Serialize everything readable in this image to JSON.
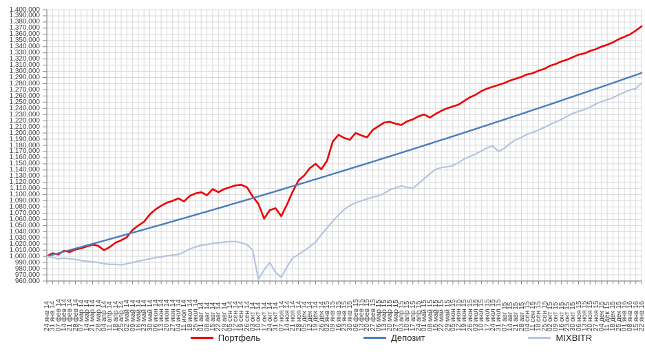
{
  "chart_data": {
    "type": "line",
    "title": "",
    "xlabel": "",
    "ylabel": "",
    "grid": {
      "horizontal": true,
      "vertical": true
    },
    "legend_position": "bottom",
    "y_axis": {
      "min": 960000,
      "max": 1400000,
      "step": 10000,
      "tick_labels": [
        "1,400,000",
        "1,390,000",
        "1,380,000",
        "1,370,000",
        "1,360,000",
        "1,350,000",
        "1,340,000",
        "1,330,000",
        "1,320,000",
        "1,310,000",
        "1,300,000",
        "1,290,000",
        "1,280,000",
        "1,270,000",
        "1,260,000",
        "1,250,000",
        "1,240,000",
        "1,230,000",
        "1,220,000",
        "1,210,000",
        "1,200,000",
        "1,190,000",
        "1,180,000",
        "1,170,000",
        "1,160,000",
        "1,150,000",
        "1,140,000",
        "1,130,000",
        "1,120,000",
        "1,110,000",
        "1,100,000",
        "1,090,000",
        "1,080,000",
        "1,070,000",
        "1,060,000",
        "1,050,000",
        "1,040,000",
        "1,030,000",
        "1,020,000",
        "1,010,000",
        "1,000,000",
        "990,000",
        "980,000",
        "970,000",
        "960,000"
      ]
    },
    "x_tick_labels": [
      "24 янв 14",
      "31 янв 14",
      "07 фев 14",
      "14 фев 14",
      "21 фев 14",
      "28 фев 14",
      "07 мар 14",
      "14 мар 14",
      "21 мар 14",
      "28 мар 14",
      "04 апр 14",
      "11 апр 14",
      "18 апр 14",
      "25 апр 14",
      "02 май 14",
      "09 май 14",
      "16 май 14",
      "23 май 14",
      "30 май 14",
      "06 июн 14",
      "13 июн 14",
      "20 июн 14",
      "27 июн 14",
      "04 июл 14",
      "11 июл 14",
      "18 июл 14",
      "25 июл 14",
      "01 авг 14",
      "08 авг 14",
      "15 авг 14",
      "22 авг 14",
      "29 авг 14",
      "05 сен 14",
      "12 сен 14",
      "19 сен 14",
      "26 сен 14",
      "03 окт 14",
      "10 окт 14",
      "17 окт 14",
      "24 окт 14",
      "31 окт 14",
      "07 ноя 14",
      "14 ноя 14",
      "21 ноя 14",
      "28 ноя 14",
      "05 дек 14",
      "12 дек 14",
      "19 дек 14",
      "26 дек 14",
      "02 янв 15",
      "09 янв 15",
      "16 янв 15",
      "23 янв 15",
      "30 янв 15",
      "06 фев 15",
      "13 фев 15",
      "20 фев 15",
      "27 фев 15",
      "06 мар 15",
      "13 мар 15",
      "20 мар 15",
      "27 мар 15",
      "03 апр 15",
      "10 апр 15",
      "17 апр 15",
      "24 апр 15",
      "01 май 15",
      "08 май 15",
      "15 май 15",
      "22 май 15",
      "29 май 15",
      "05 июн 15",
      "12 июн 15",
      "19 июн 15",
      "26 июн 15",
      "03 июл 15",
      "10 июл 15",
      "17 июл 15",
      "24 июл 15",
      "31 июл 15",
      "07 авг 15",
      "14 авг 15",
      "21 авг 15",
      "28 авг 15",
      "04 сен 15",
      "11 сен 15",
      "18 сен 15",
      "25 сен 15",
      "02 окт 15",
      "09 окт 15",
      "16 окт 15",
      "23 окт 15",
      "30 окт 15",
      "06 ноя 15",
      "13 ноя 15",
      "20 ноя 15",
      "27 ноя 15",
      "04 дек 15",
      "11 дек 15",
      "18 дек 15",
      "25 дек 15",
      "01 янв 16",
      "08 янв 16",
      "15 янв 16",
      "22 янв 16"
    ],
    "series": [
      {
        "name": "Портфель",
        "key": "portfolio",
        "color": "#ee0000",
        "width": 2.6,
        "values": [
          1000000,
          1005000,
          1003000,
          1009000,
          1007000,
          1011000,
          1013000,
          1016000,
          1019000,
          1017000,
          1010000,
          1015000,
          1022000,
          1026000,
          1031000,
          1043000,
          1050000,
          1056000,
          1068000,
          1076000,
          1082000,
          1087000,
          1090000,
          1094000,
          1089000,
          1098000,
          1102000,
          1104000,
          1099000,
          1109000,
          1104000,
          1109000,
          1112000,
          1115000,
          1116000,
          1112000,
          1097000,
          1085000,
          1061000,
          1075000,
          1078000,
          1065000,
          1084000,
          1105000,
          1123000,
          1131000,
          1143000,
          1150000,
          1141000,
          1155000,
          1186000,
          1197000,
          1192000,
          1189000,
          1200000,
          1196000,
          1193000,
          1205000,
          1211000,
          1217000,
          1218000,
          1215000,
          1213000,
          1219000,
          1222000,
          1227000,
          1230000,
          1225000,
          1231000,
          1236000,
          1240000,
          1243000,
          1246000,
          1252000,
          1258000,
          1262000,
          1268000,
          1272000,
          1275000,
          1278000,
          1281000,
          1285000,
          1288000,
          1291000,
          1295000,
          1297000,
          1301000,
          1304000,
          1309000,
          1312000,
          1316000,
          1319000,
          1323000,
          1327000,
          1329000,
          1333000,
          1336000,
          1340000,
          1343000,
          1347000,
          1352000,
          1356000,
          1360000,
          1366000,
          1373000
        ]
      },
      {
        "name": "Депозит",
        "key": "deposit",
        "color": "#4a7ebb",
        "width": 2.4,
        "values": [
          1000000,
          1002500,
          1005000,
          1007500,
          1010100,
          1012600,
          1015100,
          1017700,
          1020200,
          1022800,
          1025300,
          1027900,
          1030500,
          1033100,
          1035700,
          1038300,
          1040900,
          1043500,
          1046100,
          1048700,
          1051300,
          1054000,
          1056600,
          1059300,
          1061900,
          1064600,
          1067300,
          1070000,
          1072600,
          1075300,
          1078000,
          1080700,
          1083500,
          1086200,
          1088900,
          1091600,
          1094400,
          1097100,
          1099900,
          1102600,
          1105400,
          1108200,
          1111000,
          1113800,
          1116500,
          1119300,
          1122200,
          1125000,
          1127800,
          1130600,
          1133500,
          1136300,
          1139100,
          1142000,
          1144900,
          1147700,
          1150600,
          1153500,
          1156400,
          1159300,
          1162200,
          1165100,
          1168000,
          1171000,
          1173900,
          1176800,
          1179800,
          1182700,
          1185700,
          1188700,
          1191600,
          1194600,
          1197600,
          1200600,
          1203600,
          1206600,
          1209700,
          1212700,
          1215700,
          1218800,
          1221800,
          1224900,
          1227900,
          1231000,
          1234100,
          1237200,
          1240300,
          1243400,
          1246500,
          1249600,
          1252700,
          1255900,
          1259000,
          1262200,
          1265300,
          1268500,
          1271700,
          1274800,
          1278000,
          1281200,
          1284400,
          1287700,
          1290900,
          1294100,
          1297400
        ]
      },
      {
        "name": "MIXBITR",
        "key": "mixbitr",
        "color": "#b5c4de",
        "width": 2.2,
        "values": [
          1000000,
          998000,
          996000,
          997000,
          996000,
          995000,
          993000,
          992000,
          991000,
          990000,
          988000,
          987000,
          987000,
          986000,
          988000,
          990000,
          992000,
          994000,
          996000,
          998000,
          999000,
          1001000,
          1002000,
          1003000,
          1007000,
          1012000,
          1015000,
          1018000,
          1019000,
          1021000,
          1022000,
          1023000,
          1024000,
          1024000,
          1022000,
          1019000,
          1010000,
          963000,
          978000,
          990000,
          974000,
          966000,
          983000,
          997000,
          1003000,
          1009000,
          1016000,
          1023000,
          1035000,
          1046000,
          1057000,
          1067000,
          1076000,
          1082000,
          1087000,
          1090000,
          1093000,
          1096000,
          1098000,
          1102000,
          1108000,
          1111000,
          1114000,
          1112000,
          1110000,
          1118000,
          1126000,
          1134000,
          1141000,
          1144000,
          1145000,
          1147000,
          1152000,
          1158000,
          1162000,
          1166000,
          1171000,
          1176000,
          1179000,
          1170000,
          1175000,
          1183000,
          1189000,
          1193000,
          1198000,
          1201000,
          1205000,
          1209000,
          1214000,
          1218000,
          1222000,
          1227000,
          1232000,
          1235000,
          1238000,
          1242000,
          1247000,
          1251000,
          1254000,
          1257000,
          1262000,
          1266000,
          1270000,
          1272000,
          1281000
        ]
      }
    ]
  },
  "colors": {
    "background": "#ffffff",
    "gridline": "#d9d9d9",
    "axis": "#8c8c8c",
    "tick_text": "#3f3f3f",
    "legend_text": "#262626"
  }
}
